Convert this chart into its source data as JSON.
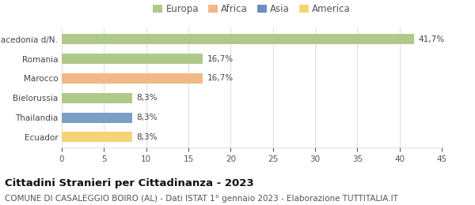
{
  "categories": [
    "Ecuador",
    "Thailandia",
    "Bielorussia",
    "Marocco",
    "Romania",
    "Macedonia d/N."
  ],
  "values": [
    8.3,
    8.3,
    8.3,
    16.7,
    16.7,
    41.7
  ],
  "bar_colors": [
    "#f5d479",
    "#7b9fc7",
    "#aec98a",
    "#f0b987",
    "#aec98a",
    "#aec98a"
  ],
  "labels": [
    "8,3%",
    "8,3%",
    "8,3%",
    "16,7%",
    "16,7%",
    "41,7%"
  ],
  "xlim": [
    0,
    45
  ],
  "xticks": [
    0,
    5,
    10,
    15,
    20,
    25,
    30,
    35,
    40,
    45
  ],
  "legend_items": [
    {
      "label": "Europa",
      "color": "#aec98a"
    },
    {
      "label": "Africa",
      "color": "#f0b987"
    },
    {
      "label": "Asia",
      "color": "#6b8ebf"
    },
    {
      "label": "America",
      "color": "#f5d479"
    }
  ],
  "title": "Cittadini Stranieri per Cittadinanza - 2023",
  "subtitle": "COMUNE DI CASALEGGIO BOIRO (AL) - Dati ISTAT 1° gennaio 2023 - Elaborazione TUTTITALIA.IT",
  "title_fontsize": 9.5,
  "subtitle_fontsize": 7.5,
  "label_fontsize": 7.5,
  "tick_fontsize": 7.5,
  "legend_fontsize": 8.5,
  "bar_height": 0.52,
  "background_color": "#ffffff",
  "grid_color": "#dddddd"
}
